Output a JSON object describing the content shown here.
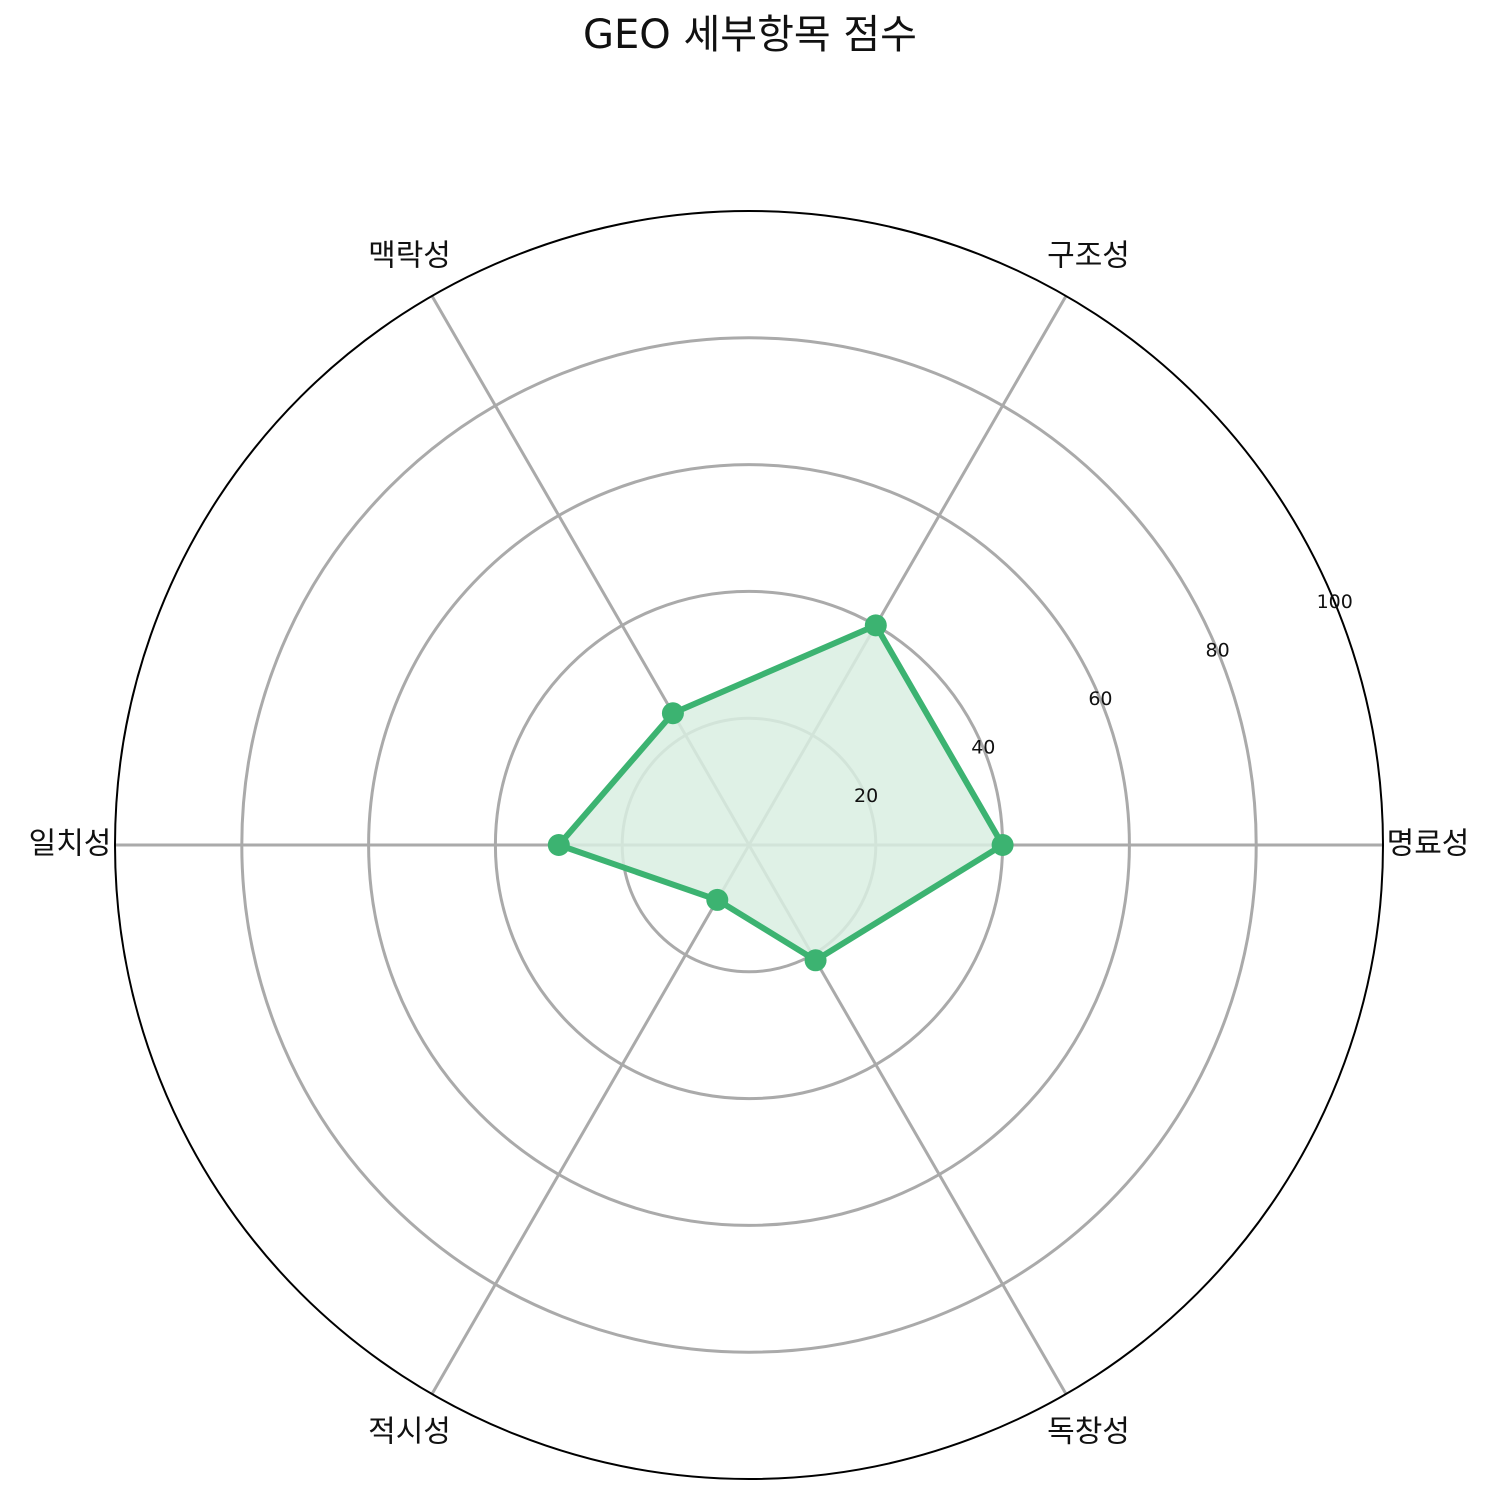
{
  "chart_data": {
    "type": "radar",
    "title": "GEO 세부항목 점수",
    "categories": [
      "명료성",
      "구조성",
      "맥락성",
      "일치성",
      "적시성",
      "독창성"
    ],
    "series": [
      {
        "values": [
          40,
          40,
          24,
          30,
          10,
          21
        ]
      }
    ],
    "rlim": [
      0,
      100
    ],
    "rticks": [
      "20",
      "40",
      "60",
      "80",
      "100"
    ],
    "rtick_values": [
      20,
      40,
      60,
      80,
      100
    ],
    "grid": true,
    "colors": {
      "line": "#3cb371",
      "fill": "#d9efe2",
      "grid": "#aaaaaa",
      "frame": "#000000"
    }
  }
}
